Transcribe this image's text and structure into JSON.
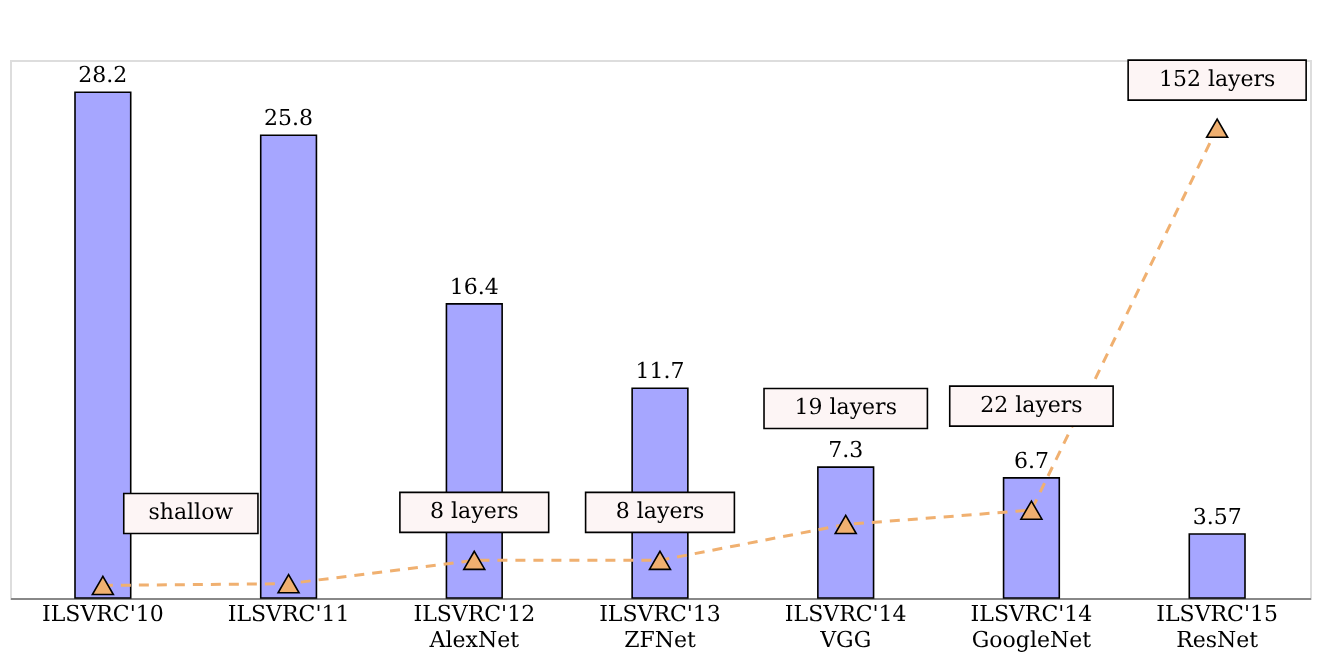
{
  "chart_data": {
    "type": "bar",
    "categories": [
      "ILSVRC'10",
      "ILSVRC'11",
      "ILSVRC'12\nAlexNet",
      "ILSVRC'13\nZFNet",
      "ILSVRC'14\nVGG",
      "ILSVRC'14\nGoogleNet",
      "ILSVRC'15\nResNet"
    ],
    "series": [
      {
        "color": "#a6a6ff",
        "values": [
          28.2,
          25.8,
          16.4,
          11.7,
          7.3,
          6.7,
          3.57
        ],
        "value_labels": [
          "28.2",
          "25.8",
          "16.4",
          "11.7",
          "7.3",
          "6.7",
          "3.57"
        ]
      },
      {
        "type": "line",
        "color": "#f0b070",
        "marker": "triangle",
        "line_style": "dashed",
        "values": [
          0.7,
          0.8,
          2.1,
          2.1,
          4.1,
          4.9,
          26.2
        ]
      }
    ],
    "annotations": [
      "shallow",
      "8 layers",
      "8 layers",
      "19 layers",
      "22 layers",
      "152 layers"
    ],
    "ylim": [
      0,
      30
    ],
    "tick_labels": "x",
    "grid": false
  }
}
